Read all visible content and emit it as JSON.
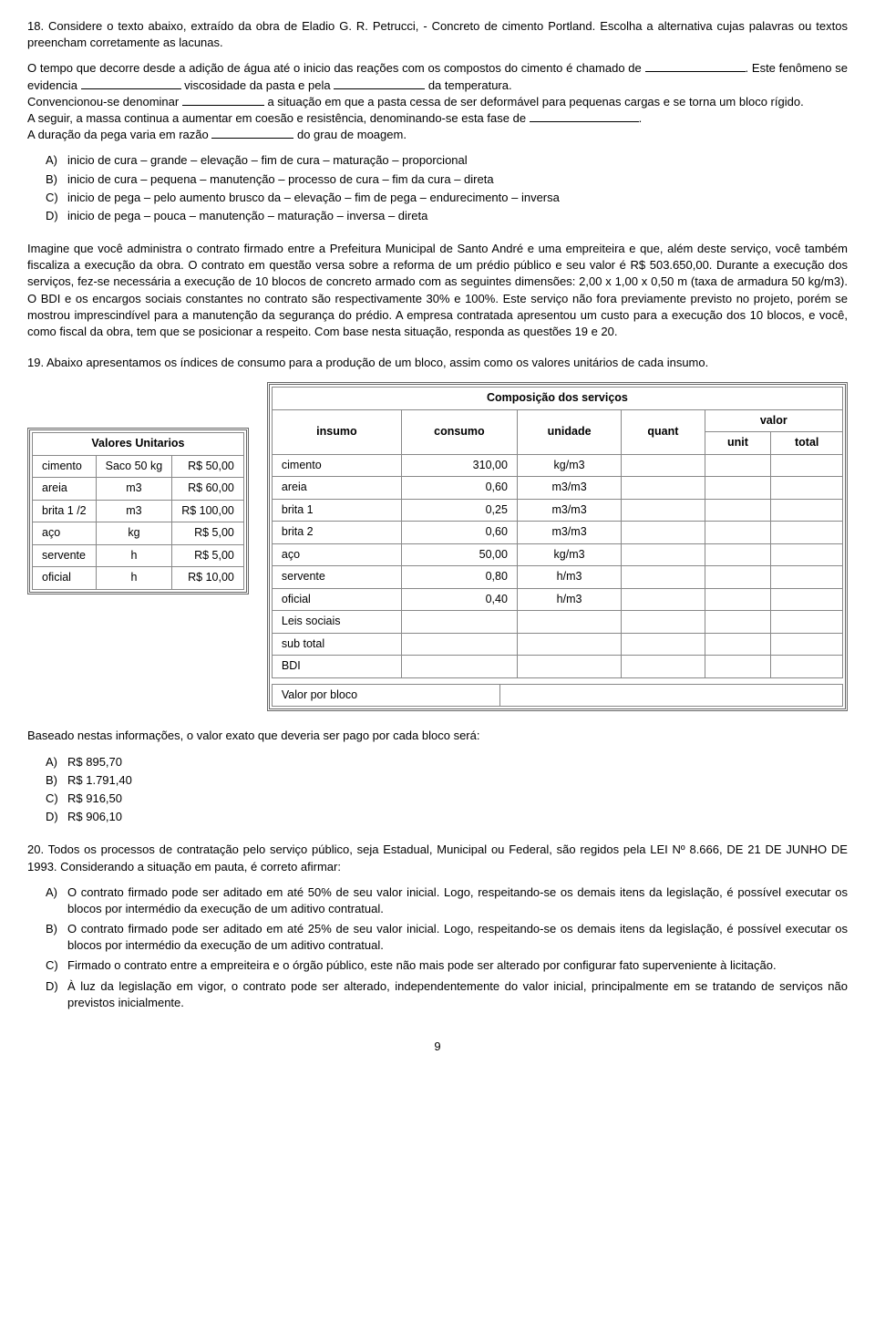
{
  "q18": {
    "num": "18.",
    "intro": "Considere o texto abaixo, extraído da obra de Eladio G. R. Petrucci, - Concreto de cimento Portland. Escolha a alternativa cujas palavras ou textos preencham corretamente as lacunas.",
    "line1a": "O tempo que decorre desde a adição de água até o inicio das reações com os compostos do cimento é chamado de ",
    "line1b": ". Este fenômeno se evidencia ",
    "line1c": " viscosidade da pasta e pela ",
    "line1d": " da temperatura.",
    "line2a": "Convencionou-se denominar ",
    "line2b": " a situação em que a pasta cessa de ser deformável para pequenas cargas e se torna um bloco rígido.",
    "line3a": "A seguir, a massa continua a aumentar em coesão e resistência, denominando-se esta fase de ",
    "line3b": ".",
    "line4a": "A duração da pega varia em razão ",
    "line4b": " do grau de moagem.",
    "options": [
      {
        "letter": "A)",
        "text": "inicio de cura – grande – elevação – fim de cura – maturação – proporcional"
      },
      {
        "letter": "B)",
        "text": "inicio de cura – pequena – manutenção – processo de cura – fim da cura – direta"
      },
      {
        "letter": "C)",
        "text": "inicio de pega – pelo aumento brusco da – elevação – fim de pega – endurecimento – inversa"
      },
      {
        "letter": "D)",
        "text": "inicio de pega – pouca – manutenção – maturação – inversa – direta"
      }
    ]
  },
  "context": "Imagine que você administra o contrato firmado entre a Prefeitura Municipal de Santo André e uma empreiteira e que, além deste serviço, você também fiscaliza a execução da obra. O contrato em questão versa sobre a reforma de um prédio público e seu valor é R$ 503.650,00. Durante a execução dos serviços, fez-se necessária a execução de 10 blocos de concreto armado com as seguintes dimensões: 2,00 x 1,00 x 0,50 m (taxa de armadura 50 kg/m3). O BDI e os encargos sociais constantes no contrato são respectivamente 30% e 100%. Este serviço não fora previamente previsto no projeto, porém se mostrou imprescindível para a manutenção da segurança do prédio. A empresa contratada apresentou um custo para a execução dos 10 blocos, e você, como fiscal da obra, tem que se posicionar a respeito. Com base nesta situação, responda as questões 19 e 20.",
  "q19": {
    "num": "19.",
    "intro": "Abaixo apresentamos os índices de consumo para a produção de um bloco, assim como os valores unitários de cada insumo.",
    "table_unit": {
      "title": "Valores Unitarios",
      "rows": [
        [
          "cimento",
          "Saco 50 kg",
          "R$ 50,00"
        ],
        [
          "areia",
          "m3",
          "R$ 60,00"
        ],
        [
          "brita 1 /2",
          "m3",
          "R$ 100,00"
        ],
        [
          "aço",
          "kg",
          "R$ 5,00"
        ],
        [
          "servente",
          "h",
          "R$ 5,00"
        ],
        [
          "oficial",
          "h",
          "R$ 10,00"
        ]
      ]
    },
    "table_comp": {
      "title": "Composição dos serviços",
      "head": [
        "insumo",
        "consumo",
        "unidade",
        "quant",
        "valor"
      ],
      "valor_sub": [
        "unit",
        "total"
      ],
      "rows": [
        [
          "cimento",
          "310,00",
          "kg/m3"
        ],
        [
          "areia",
          "0,60",
          "m3/m3"
        ],
        [
          "brita 1",
          "0,25",
          "m3/m3"
        ],
        [
          "brita 2",
          "0,60",
          "m3/m3"
        ],
        [
          "aço",
          "50,00",
          "kg/m3"
        ],
        [
          "servente",
          "0,80",
          "h/m3"
        ],
        [
          "oficial",
          "0,40",
          "h/m3"
        ],
        [
          "Leis sociais",
          "",
          ""
        ],
        [
          "sub total",
          "",
          ""
        ],
        [
          "BDI",
          "",
          ""
        ]
      ],
      "footer": "Valor por bloco"
    },
    "result_label": "Baseado nestas informações, o valor exato que deveria ser pago por cada bloco será:",
    "options": [
      {
        "letter": "A)",
        "text": "R$ 895,70"
      },
      {
        "letter": "B)",
        "text": "R$ 1.791,40"
      },
      {
        "letter": "C)",
        "text": "R$ 916,50"
      },
      {
        "letter": "D)",
        "text": "R$ 906,10"
      }
    ]
  },
  "q20": {
    "num": "20.",
    "intro": "Todos os processos de contratação pelo serviço público, seja Estadual, Municipal ou Federal, são regidos pela  LEI Nº 8.666, DE 21 DE JUNHO DE 1993. Considerando a situação em pauta, é correto afirmar:",
    "options": [
      {
        "letter": "A)",
        "text": "O contrato firmado pode ser aditado em até 50% de seu valor inicial. Logo, respeitando-se os demais itens da legislação, é possível executar os blocos por intermédio da execução de um aditivo contratual."
      },
      {
        "letter": "B)",
        "text": "O contrato firmado pode ser aditado em até 25% de seu valor inicial. Logo, respeitando-se os demais itens da legislação, é possível executar os blocos por intermédio da execução de um aditivo contratual."
      },
      {
        "letter": "C)",
        "text": "Firmado o contrato entre a empreiteira e o órgão público, este não mais pode ser alterado por configurar fato superveniente à licitação."
      },
      {
        "letter": "D)",
        "text": "À luz da legislação em vigor, o contrato pode ser alterado, independentemente do valor inicial, principalmente em se tratando de serviços não previstos inicialmente."
      }
    ]
  },
  "page_num": "9"
}
